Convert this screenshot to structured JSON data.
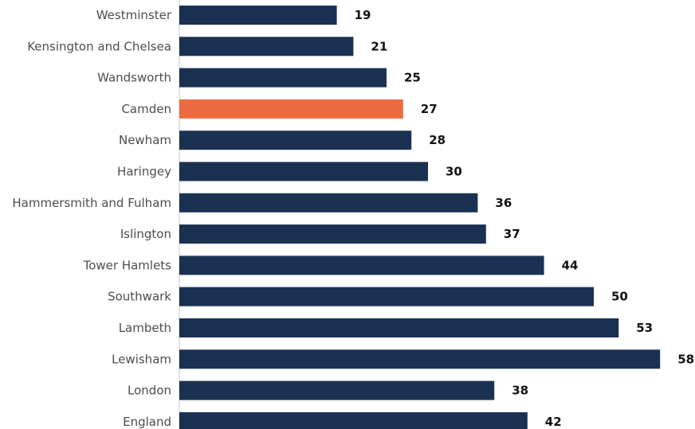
{
  "colors": {
    "bar_default": "#1b3152",
    "bar_highlight": "#ec6a3f",
    "axis_line": "#c8c8c8",
    "background": "#ffffff"
  },
  "chart_data": {
    "type": "bar",
    "orientation": "horizontal",
    "title": "",
    "xlabel": "",
    "ylabel": "",
    "xlim": [
      0,
      58
    ],
    "grid": false,
    "legend": "none",
    "highlight_category": "Camden",
    "categories": [
      "Westminster",
      "Kensington and Chelsea",
      "Wandsworth",
      "Camden",
      "Newham",
      "Haringey",
      "Hammersmith and Fulham",
      "Islington",
      "Tower Hamlets",
      "Southwark",
      "Lambeth",
      "Lewisham",
      "London",
      "England"
    ],
    "values": [
      19,
      21,
      25,
      27,
      28,
      30,
      36,
      37,
      44,
      50,
      53,
      58,
      38,
      42
    ]
  }
}
